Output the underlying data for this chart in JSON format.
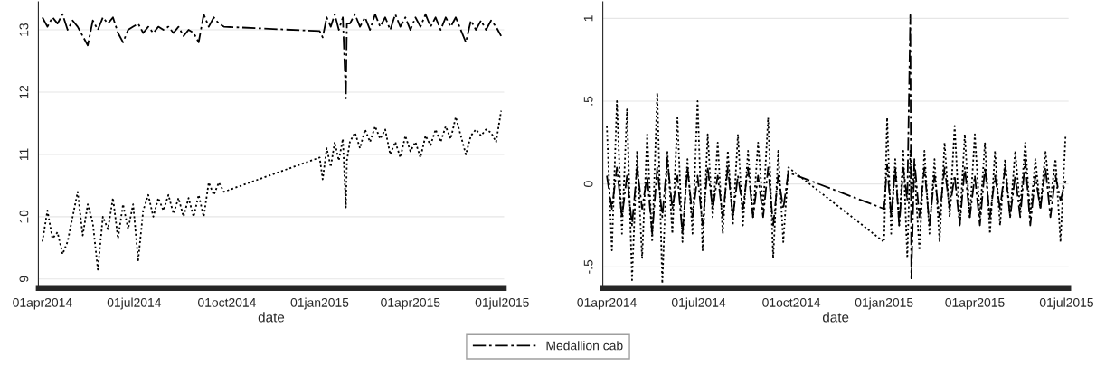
{
  "chart_data": [
    {
      "type": "line",
      "xlabel": "date",
      "grid": "y",
      "legend": "bottom",
      "x": [
        "2014-04-01",
        "2014-04-06",
        "2014-04-11",
        "2014-04-16",
        "2014-04-21",
        "2014-04-26",
        "2014-05-01",
        "2014-05-06",
        "2014-05-11",
        "2014-05-16",
        "2014-05-21",
        "2014-05-26",
        "2014-05-31",
        "2014-06-05",
        "2014-06-10",
        "2014-06-15",
        "2014-06-20",
        "2014-06-25",
        "2014-06-30",
        "2014-07-05",
        "2014-07-10",
        "2014-07-15",
        "2014-07-20",
        "2014-07-25",
        "2014-07-30",
        "2014-08-04",
        "2014-08-09",
        "2014-08-14",
        "2014-08-19",
        "2014-08-24",
        "2014-08-29",
        "2014-09-03",
        "2014-09-08",
        "2014-09-13",
        "2014-09-18",
        "2014-09-23",
        "2014-09-28",
        "2015-01-01",
        "2015-01-04",
        "2015-01-08",
        "2015-01-12",
        "2015-01-16",
        "2015-01-20",
        "2015-01-24",
        "2015-01-27",
        "2015-01-28",
        "2015-01-31",
        "2015-02-05",
        "2015-02-10",
        "2015-02-15",
        "2015-02-20",
        "2015-02-25",
        "2015-03-02",
        "2015-03-07",
        "2015-03-12",
        "2015-03-17",
        "2015-03-22",
        "2015-03-27",
        "2015-04-01",
        "2015-04-06",
        "2015-04-11",
        "2015-04-16",
        "2015-04-21",
        "2015-04-26",
        "2015-05-01",
        "2015-05-06",
        "2015-05-11",
        "2015-05-16",
        "2015-05-21",
        "2015-05-26",
        "2015-05-31",
        "2015-06-05",
        "2015-06-10",
        "2015-06-15",
        "2015-06-20",
        "2015-06-25",
        "2015-06-30"
      ],
      "series": [
        {
          "name": "Medallion cab",
          "color": "#000000",
          "line_style": "dashed",
          "values": [
            13.2,
            13.05,
            13.2,
            13.1,
            13.25,
            13.0,
            13.15,
            13.05,
            12.9,
            12.75,
            13.15,
            13.0,
            13.2,
            13.1,
            13.2,
            12.95,
            12.8,
            13.0,
            13.05,
            13.1,
            12.95,
            13.05,
            12.95,
            13.05,
            13.0,
            13.05,
            12.95,
            13.05,
            12.9,
            13.0,
            12.95,
            12.8,
            13.25,
            13.05,
            13.2,
            13.1,
            13.05,
            12.98,
            12.88,
            13.2,
            13.05,
            13.25,
            13.0,
            13.2,
            11.9,
            13.1,
            13.1,
            13.25,
            13.05,
            13.2,
            13.0,
            13.25,
            13.05,
            13.2,
            13.0,
            13.25,
            13.05,
            13.2,
            13.0,
            13.2,
            13.05,
            13.25,
            13.05,
            13.2,
            13.0,
            13.2,
            13.05,
            13.2,
            13.0,
            12.8,
            13.15,
            13.0,
            13.15,
            13.0,
            13.15,
            13.05,
            12.9
          ]
        },
        {
          "color": "#000000",
          "line_style": "dotted",
          "values": [
            9.6,
            10.1,
            9.65,
            9.75,
            9.4,
            9.6,
            10.0,
            10.4,
            9.7,
            10.2,
            9.9,
            9.15,
            10.0,
            9.8,
            10.3,
            9.65,
            10.2,
            9.8,
            10.2,
            9.3,
            10.1,
            10.35,
            10.0,
            10.3,
            10.1,
            10.35,
            10.05,
            10.3,
            10.0,
            10.3,
            10.0,
            10.35,
            10.0,
            10.55,
            10.35,
            10.55,
            10.4,
            10.95,
            10.6,
            11.1,
            10.8,
            11.2,
            10.9,
            11.25,
            10.15,
            10.9,
            11.2,
            11.35,
            11.1,
            11.4,
            11.2,
            11.45,
            11.25,
            11.4,
            11.0,
            11.2,
            10.95,
            11.3,
            11.05,
            11.2,
            10.95,
            11.3,
            11.15,
            11.4,
            11.2,
            11.45,
            11.25,
            11.6,
            11.3,
            11.0,
            11.3,
            11.4,
            11.3,
            11.4,
            11.35,
            11.2,
            11.7
          ]
        }
      ],
      "xlim": [
        "2014-03-28",
        "2015-07-03"
      ],
      "xticks": [
        {
          "value": "2014-04-01",
          "label": "01apr2014"
        },
        {
          "value": "2014-07-01",
          "label": "01jul2014"
        },
        {
          "value": "2014-10-01",
          "label": "01oct2014"
        },
        {
          "value": "2015-01-01",
          "label": "01jan2015"
        },
        {
          "value": "2015-04-01",
          "label": "01apr2015"
        },
        {
          "value": "2015-07-01",
          "label": "01jul2015"
        }
      ],
      "ylim": [
        8.85,
        13.45
      ],
      "yticks": [
        9,
        10,
        11,
        12,
        13
      ]
    },
    {
      "type": "line",
      "xlabel": "date",
      "grid": "y",
      "x": [
        "2014-04-01",
        "2014-04-06",
        "2014-04-11",
        "2014-04-16",
        "2014-04-21",
        "2014-04-26",
        "2014-05-01",
        "2014-05-06",
        "2014-05-11",
        "2014-05-16",
        "2014-05-21",
        "2014-05-26",
        "2014-05-31",
        "2014-06-05",
        "2014-06-10",
        "2014-06-15",
        "2014-06-20",
        "2014-06-25",
        "2014-06-30",
        "2014-07-05",
        "2014-07-10",
        "2014-07-15",
        "2014-07-20",
        "2014-07-25",
        "2014-07-30",
        "2014-08-04",
        "2014-08-09",
        "2014-08-14",
        "2014-08-19",
        "2014-08-24",
        "2014-08-29",
        "2014-09-03",
        "2014-09-08",
        "2014-09-13",
        "2014-09-18",
        "2014-09-23",
        "2014-09-28",
        "2015-01-01",
        "2015-01-04",
        "2015-01-08",
        "2015-01-12",
        "2015-01-16",
        "2015-01-20",
        "2015-01-24",
        "2015-01-27",
        "2015-01-28",
        "2015-01-31",
        "2015-02-05",
        "2015-02-10",
        "2015-02-15",
        "2015-02-20",
        "2015-02-25",
        "2015-03-02",
        "2015-03-07",
        "2015-03-12",
        "2015-03-17",
        "2015-03-22",
        "2015-03-27",
        "2015-04-01",
        "2015-04-06",
        "2015-04-11",
        "2015-04-16",
        "2015-04-21",
        "2015-04-26",
        "2015-05-01",
        "2015-05-06",
        "2015-05-11",
        "2015-05-16",
        "2015-05-21",
        "2015-05-26",
        "2015-05-31",
        "2015-06-05",
        "2015-06-10",
        "2015-06-15",
        "2015-06-20",
        "2015-06-25",
        "2015-06-30"
      ],
      "series": [
        {
          "color": "#000000",
          "line_style": "dashed",
          "values": [
            0.05,
            -0.15,
            0.1,
            -0.2,
            0.05,
            -0.25,
            0.1,
            -0.15,
            0.05,
            -0.3,
            0.1,
            -0.2,
            0.15,
            -0.15,
            0.05,
            -0.3,
            0.1,
            -0.2,
            0.05,
            -0.25,
            0.1,
            -0.15,
            0.05,
            -0.2,
            0.1,
            -0.2,
            0.05,
            -0.15,
            0.1,
            -0.2,
            0.05,
            -0.2,
            0.1,
            -0.25,
            0.05,
            -0.15,
            0.07,
            -0.15,
            0.12,
            -0.2,
            0.1,
            -0.25,
            0.1,
            -0.1,
            1.02,
            -0.57,
            0.15,
            -0.2,
            0.1,
            -0.25,
            0.05,
            -0.2,
            0.1,
            -0.15,
            0.05,
            -0.25,
            0.1,
            -0.2,
            0.05,
            -0.25,
            0.1,
            -0.2,
            0.05,
            -0.15,
            0.1,
            -0.2,
            0.05,
            -0.2,
            0.15,
            -0.25,
            0.05,
            -0.15,
            0.1,
            -0.2,
            0.05,
            -0.1,
            0.02
          ]
        },
        {
          "color": "#000000",
          "line_style": "dotted",
          "values": [
            0.35,
            -0.4,
            0.5,
            -0.3,
            0.45,
            -0.58,
            0.2,
            -0.45,
            0.3,
            -0.35,
            0.55,
            -0.6,
            0.2,
            -0.3,
            0.4,
            -0.35,
            0.15,
            -0.3,
            0.5,
            -0.4,
            0.3,
            -0.2,
            0.25,
            -0.3,
            0.2,
            -0.25,
            0.3,
            -0.25,
            0.2,
            -0.2,
            0.25,
            -0.15,
            0.4,
            -0.45,
            0.2,
            -0.35,
            0.1,
            -0.35,
            0.4,
            -0.3,
            0.15,
            -0.25,
            0.2,
            -0.45,
            0.2,
            -0.1,
            0.1,
            -0.4,
            0.2,
            -0.3,
            0.15,
            -0.35,
            0.25,
            -0.2,
            0.35,
            -0.25,
            0.3,
            -0.2,
            0.3,
            -0.2,
            0.25,
            -0.3,
            0.2,
            -0.25,
            0.15,
            -0.2,
            0.2,
            -0.15,
            0.25,
            -0.2,
            0.15,
            -0.15,
            0.2,
            -0.1,
            0.15,
            -0.35,
            0.3
          ]
        }
      ],
      "xlim": [
        "2014-03-28",
        "2015-07-03"
      ],
      "xticks": [
        {
          "value": "2014-04-01",
          "label": "01apr2014"
        },
        {
          "value": "2014-07-01",
          "label": "01jul2014"
        },
        {
          "value": "2014-10-01",
          "label": "01oct2014"
        },
        {
          "value": "2015-01-01",
          "label": "01jan2015"
        },
        {
          "value": "2015-04-01",
          "label": "01apr2015"
        },
        {
          "value": "2015-07-01",
          "label": "01jul2015"
        }
      ],
      "ylim": [
        -0.63,
        1.1
      ],
      "yticks": [
        {
          "value": -0.5,
          "label": "-.5"
        },
        0,
        {
          "value": 0.5,
          "label": ".5"
        },
        1
      ]
    }
  ]
}
